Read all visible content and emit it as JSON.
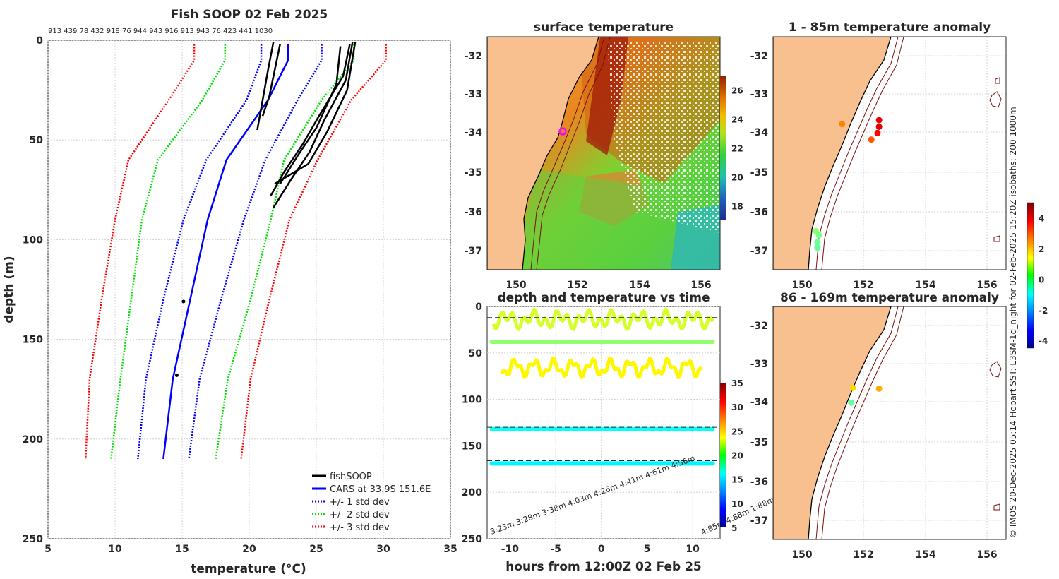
{
  "chart_data": [
    {
      "type": "line",
      "title": "Fish SOOP 02 Feb 2025",
      "top_labels": "913 439 78 432 918 76 944 943 916 913 943 76 423 441 1030",
      "xlabel": "temperature (°C)",
      "ylabel": "depth (m)",
      "xlim": [
        5,
        35
      ],
      "ylim": [
        0,
        250
      ],
      "y_reversed": true,
      "xticks": [
        "5",
        "10",
        "15",
        "20",
        "25",
        "30",
        "35"
      ],
      "yticks": [
        "0",
        "50",
        "100",
        "150",
        "200",
        "250"
      ],
      "legend": [
        "fishSOOP",
        "CARS at 33.9S 151.6E",
        "+/- 1 std dev",
        "+/- 2 std dev",
        "+/- 3 std dev"
      ],
      "legend_position": "bottom-right",
      "colors": {
        "fishSOOP": "#000000",
        "cars": "#0000ff",
        "std1": "#0000ff",
        "std2": "#00e000",
        "std3": "#ff0000"
      },
      "depths": [
        2,
        10,
        30,
        60,
        90,
        130,
        170,
        210
      ],
      "series": [
        {
          "name": "CARS mean",
          "values": [
            22.9,
            22.9,
            21.4,
            18.3,
            16.9,
            15.6,
            14.3,
            13.6
          ]
        },
        {
          "name": "-1 std",
          "values": [
            20.9,
            20.9,
            19.8,
            16.8,
            15.1,
            13.6,
            12.3,
            11.7
          ]
        },
        {
          "name": "+1 std",
          "values": [
            25.4,
            25.4,
            23.6,
            21.2,
            19.6,
            17.9,
            16.3,
            15.5
          ]
        },
        {
          "name": "-2 std",
          "values": [
            18.2,
            18.2,
            16.5,
            13.2,
            12.0,
            11.2,
            10.4,
            9.7
          ]
        },
        {
          "name": "+2 std",
          "values": [
            27.8,
            27.8,
            25.4,
            22.6,
            21.6,
            20.1,
            18.4,
            17.5
          ]
        },
        {
          "name": "-3 std",
          "values": [
            15.9,
            15.9,
            14.0,
            11.0,
            10.0,
            9.0,
            8.1,
            7.8
          ]
        },
        {
          "name": "+3 std",
          "values": [
            30.2,
            30.2,
            27.6,
            25.1,
            23.0,
            21.5,
            20.1,
            19.4
          ]
        }
      ],
      "fish_profiles": [
        {
          "depth": [
            1,
            15,
            30,
            45
          ],
          "temp": [
            21.8,
            21.4,
            21.0,
            20.6
          ]
        },
        {
          "depth": [
            2,
            15,
            28,
            38
          ],
          "temp": [
            22.3,
            21.9,
            21.5,
            21.0
          ]
        },
        {
          "depth": [
            1,
            20,
            40,
            56,
            70,
            84
          ],
          "temp": [
            27.7,
            27.2,
            25.6,
            24.5,
            23.1,
            21.8
          ]
        },
        {
          "depth": [
            2,
            18,
            38,
            52,
            66,
            78
          ],
          "temp": [
            27.5,
            27.0,
            25.2,
            24.0,
            22.6,
            21.6
          ]
        },
        {
          "depth": [
            3,
            22,
            44,
            58,
            72
          ],
          "temp": [
            26.8,
            26.5,
            25.0,
            23.6,
            22.3
          ]
        },
        {
          "depth": [
            1,
            25,
            46,
            62,
            72
          ],
          "temp": [
            27.9,
            27.3,
            25.8,
            24.4,
            21.9
          ]
        }
      ],
      "fish_points": [
        {
          "depth": 131,
          "temp": 15.1
        },
        {
          "depth": 168,
          "temp": 14.6
        }
      ]
    },
    {
      "type": "heatmap",
      "title": "surface temperature",
      "xticks": [
        "150",
        "152",
        "154",
        "156"
      ],
      "yticks": [
        "-32",
        "-33",
        "-34",
        "-35",
        "-36",
        "-37"
      ],
      "colorbar_ticks": [
        "26",
        "24",
        "22",
        "20",
        "18"
      ],
      "colorbar_range": [
        17,
        27
      ],
      "marker": {
        "lon": 151.6,
        "lat": -33.9
      }
    },
    {
      "type": "scatter",
      "title": "depth and temperature vs time",
      "xlabel": "hours from 12:00Z 02 Feb 25",
      "xlim": [
        -12.5,
        13
      ],
      "ylim": [
        0,
        250
      ],
      "xticks": [
        "-10",
        "-5",
        "0",
        "5",
        "10"
      ],
      "yticks": [
        "0",
        "50",
        "100",
        "150",
        "200",
        "250"
      ],
      "colorbar_ticks": [
        "35",
        "30",
        "25",
        "20",
        "15",
        "10",
        "5"
      ],
      "colorbar_range": [
        5,
        35
      ],
      "reference_depths": [
        12,
        130,
        166
      ],
      "bands": [
        {
          "depth": 38,
          "temp": 20.5
        },
        {
          "depth": 132,
          "temp": 16.5
        },
        {
          "depth": 169,
          "temp": 16.0
        }
      ],
      "corner_labels_left": "3:23m 3:28m 3:38m 4:03m 4:26m 4:41m 4:61m 4:56m",
      "corner_labels_right": "4:85m 4:88m 1:88m"
    },
    {
      "type": "scatter",
      "title": "1 - 85m temperature anomaly",
      "xticks": [
        "150",
        "152",
        "154",
        "156"
      ],
      "yticks": [
        "-32",
        "-33",
        "-34",
        "-35",
        "-36",
        "-37"
      ],
      "points": [
        {
          "lon": 151.3,
          "lat": -33.75,
          "anom": 2.6
        },
        {
          "lon": 152.5,
          "lat": -33.65,
          "anom": 4.0
        },
        {
          "lon": 152.5,
          "lat": -33.82,
          "anom": 4.1
        },
        {
          "lon": 152.45,
          "lat": -33.98,
          "anom": 3.8
        },
        {
          "lon": 152.25,
          "lat": -34.15,
          "anom": 3.0
        },
        {
          "lon": 150.45,
          "lat": -36.5,
          "anom": 0.4
        },
        {
          "lon": 150.55,
          "lat": -36.6,
          "anom": 0.2
        },
        {
          "lon": 150.5,
          "lat": -36.78,
          "anom": 0.1
        },
        {
          "lon": 150.5,
          "lat": -36.92,
          "anom": 0.0
        }
      ]
    },
    {
      "type": "scatter",
      "title": "86 - 169m temperature anomaly",
      "xticks": [
        "150",
        "152",
        "154",
        "156"
      ],
      "yticks": [
        "-32",
        "-33",
        "-34",
        "-35",
        "-36",
        "-37"
      ],
      "colorbar_ticks": [
        "4",
        "2",
        "0",
        "-2",
        "-4"
      ],
      "colorbar_range": [
        -4.5,
        5
      ],
      "points": [
        {
          "lon": 151.65,
          "lat": -33.6,
          "anom": 1.8
        },
        {
          "lon": 152.5,
          "lat": -33.62,
          "anom": 2.2
        },
        {
          "lon": 151.6,
          "lat": -33.98,
          "anom": 0.0
        }
      ]
    }
  ],
  "side_note": "© IMOS 20-Dec-2025 05:14 Hobart SST: L3SM-1d_night for 02-Feb-2025 15:20Z isobaths: 200  1000m"
}
